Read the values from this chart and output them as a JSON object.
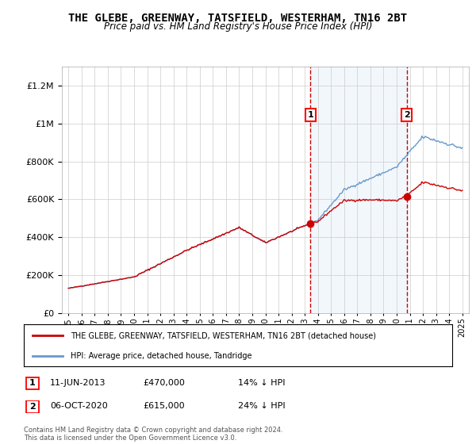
{
  "title": "THE GLEBE, GREENWAY, TATSFIELD, WESTERHAM, TN16 2BT",
  "subtitle": "Price paid vs. HM Land Registry's House Price Index (HPI)",
  "legend_line1": "THE GLEBE, GREENWAY, TATSFIELD, WESTERHAM, TN16 2BT (detached house)",
  "legend_line2": "HPI: Average price, detached house, Tandridge",
  "annotation1_date": "11-JUN-2013",
  "annotation1_price": "£470,000",
  "annotation1_hpi": "14% ↓ HPI",
  "annotation2_date": "06-OCT-2020",
  "annotation2_price": "£615,000",
  "annotation2_hpi": "24% ↓ HPI",
  "copyright": "Contains HM Land Registry data © Crown copyright and database right 2024.\nThis data is licensed under the Open Government Licence v3.0.",
  "sale1_x": 2013.44,
  "sale1_y": 470000,
  "sale2_x": 2020.76,
  "sale2_y": 615000,
  "ylim": [
    0,
    1300000
  ],
  "xlim_start": 1994.5,
  "xlim_end": 2025.5,
  "span_color": "#dce9f7",
  "plot_bg": "#ffffff",
  "red_line_color": "#cc0000",
  "blue_line_color": "#6699cc",
  "dashed_line_color": "#cc0000"
}
